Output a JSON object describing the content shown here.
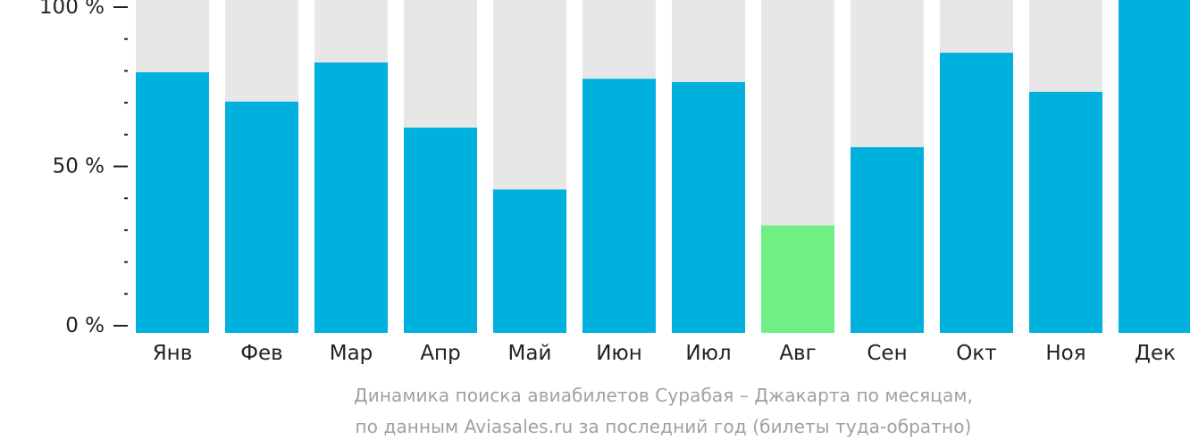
{
  "chart_data": {
    "type": "bar",
    "stacked_background": true,
    "categories": [
      "Янв",
      "Фев",
      "Мар",
      "Апр",
      "Май",
      "Июн",
      "Июл",
      "Авг",
      "Сен",
      "Окт",
      "Ноя",
      "Дек"
    ],
    "values": [
      80,
      71,
      83,
      63,
      44,
      78,
      77,
      33,
      57,
      86,
      74,
      100
    ],
    "ylim": [
      0,
      100
    ],
    "yticks": [
      {
        "value": 100,
        "label": "100 %"
      },
      {
        "value": 50,
        "label": "50 %"
      },
      {
        "value": 0,
        "label": "0 %"
      }
    ],
    "minor_ytick_step": 10,
    "grid": false,
    "highlight_index": 7,
    "colors": {
      "bar": "#00b0dd",
      "highlight": "#6ef085",
      "background_bar": "#e7e7e7",
      "axis": "#222222"
    },
    "caption": {
      "line1": "Динамика поиска авиабилетов Сурабая – Джакарта по месяцам,",
      "line2": "по данным Aviasales.ru за последний год (билеты туда-обратно)"
    }
  }
}
